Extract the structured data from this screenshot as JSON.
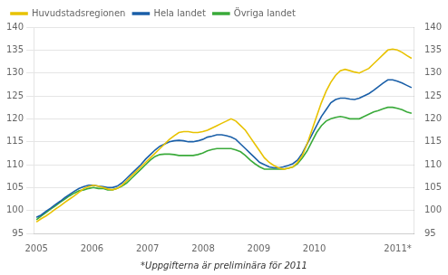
{
  "chart_data": {
    "type": "line",
    "x": [
      2005,
      2005.085443,
      2005.170886,
      2005.256329,
      2005.341772,
      2005.427215,
      2005.512658,
      2005.598101,
      2005.683544,
      2005.768987,
      2005.85443,
      2005.939873,
      2006.025316,
      2006.110759,
      2006.196203,
      2006.281646,
      2006.367089,
      2006.452532,
      2006.537975,
      2006.623418,
      2006.708861,
      2006.794304,
      2006.879747,
      2006.96519,
      2007.050633,
      2007.136076,
      2007.221519,
      2007.306962,
      2007.392405,
      2007.477848,
      2007.563291,
      2007.648734,
      2007.734177,
      2007.81962,
      2007.905063,
      2007.990506,
      2008.075949,
      2008.161392,
      2008.246835,
      2008.332278,
      2008.417722,
      2008.503165,
      2008.588608,
      2008.674051,
      2008.759494,
      2008.844937,
      2008.93038,
      2009.015823,
      2009.101266,
      2009.186709,
      2009.272152,
      2009.357595,
      2009.443038,
      2009.528481,
      2009.613924,
      2009.699367,
      2009.78481,
      2009.870253,
      2009.955696,
      2010.041139,
      2010.126582,
      2010.212025,
      2010.297468,
      2010.382911,
      2010.468354,
      2010.553797,
      2010.639241,
      2010.724684,
      2010.810127,
      2010.89557,
      2010.981013,
      2011.066456,
      2011.151899,
      2011.237342,
      2011.322785,
      2011.408228,
      2011.493671,
      2011.579114,
      2011.664557,
      2011.75
    ],
    "series": [
      {
        "name": "Huvudstadsregionen",
        "color": "#e8c200",
        "values": [
          97.5,
          98.2,
          98.8,
          99.5,
          100.3,
          101.0,
          101.8,
          102.5,
          103.2,
          104.0,
          104.8,
          105.2,
          105.5,
          105.3,
          105.0,
          104.7,
          104.5,
          104.8,
          105.5,
          106.5,
          107.5,
          108.5,
          109.5,
          110.5,
          111.5,
          112.5,
          113.5,
          114.5,
          115.5,
          116.3,
          117.0,
          117.2,
          117.2,
          117.0,
          117.0,
          117.2,
          117.5,
          118.0,
          118.5,
          119.0,
          119.5,
          120.0,
          119.5,
          118.5,
          117.5,
          116.0,
          114.5,
          113.0,
          111.5,
          110.5,
          109.8,
          109.3,
          109.0,
          109.2,
          109.5,
          110.5,
          112.0,
          114.5,
          117.5,
          120.5,
          123.5,
          126.0,
          128.0,
          129.5,
          130.5,
          130.8,
          130.5,
          130.2,
          130.0,
          130.5,
          131.0,
          132.0,
          133.0,
          134.0,
          135.0,
          135.2,
          135.0,
          134.5,
          133.8,
          133.2
        ]
      },
      {
        "name": "Hela landet",
        "color": "#1a5fa8",
        "values": [
          98.5,
          99.0,
          99.8,
          100.5,
          101.3,
          102.0,
          102.8,
          103.5,
          104.2,
          104.8,
          105.2,
          105.5,
          105.5,
          105.3,
          105.2,
          105.0,
          105.0,
          105.3,
          106.0,
          107.0,
          108.0,
          109.0,
          110.0,
          111.2,
          112.2,
          113.2,
          114.0,
          114.5,
          115.0,
          115.2,
          115.3,
          115.2,
          115.0,
          115.0,
          115.2,
          115.5,
          116.0,
          116.2,
          116.5,
          116.5,
          116.3,
          116.0,
          115.5,
          114.5,
          113.5,
          112.5,
          111.5,
          110.5,
          110.0,
          109.5,
          109.3,
          109.3,
          109.5,
          109.8,
          110.2,
          111.0,
          112.5,
          114.5,
          116.5,
          118.5,
          120.5,
          122.0,
          123.5,
          124.2,
          124.5,
          124.5,
          124.3,
          124.2,
          124.5,
          125.0,
          125.5,
          126.2,
          127.0,
          127.8,
          128.5,
          128.5,
          128.2,
          127.8,
          127.3,
          126.8
        ]
      },
      {
        "name": "Övriga landet",
        "color": "#3aaa3a",
        "values": [
          98.0,
          98.8,
          99.5,
          100.3,
          101.0,
          101.8,
          102.5,
          103.2,
          103.8,
          104.3,
          104.5,
          104.8,
          105.0,
          104.8,
          104.8,
          104.5,
          104.5,
          104.8,
          105.3,
          106.0,
          107.0,
          108.0,
          109.0,
          110.0,
          111.0,
          111.8,
          112.2,
          112.3,
          112.3,
          112.2,
          112.0,
          112.0,
          112.0,
          112.0,
          112.2,
          112.5,
          113.0,
          113.3,
          113.5,
          113.5,
          113.5,
          113.5,
          113.2,
          112.8,
          112.0,
          111.0,
          110.2,
          109.5,
          109.0,
          109.0,
          109.0,
          109.0,
          109.0,
          109.2,
          109.5,
          110.2,
          111.5,
          113.0,
          115.0,
          117.0,
          118.5,
          119.5,
          120.0,
          120.3,
          120.5,
          120.3,
          120.0,
          120.0,
          120.0,
          120.5,
          121.0,
          121.5,
          121.8,
          122.2,
          122.5,
          122.5,
          122.3,
          122.0,
          121.5,
          121.2
        ]
      }
    ],
    "xlim": [
      2004.95,
      2011.8
    ],
    "xticks": [
      2005,
      2006,
      2007,
      2008,
      2009,
      2010,
      {
        "value": 2011.5,
        "label": "2011*"
      }
    ],
    "ylim": [
      95,
      140
    ],
    "yticks": [
      95,
      100,
      105,
      110,
      115,
      120,
      125,
      130,
      135,
      140
    ],
    "y2lim": [
      95,
      140
    ],
    "y2ticks": [
      95,
      100,
      105,
      110,
      115,
      120,
      125,
      130,
      135,
      140
    ],
    "grid": true,
    "legend": "upper left",
    "footnote": "*Uppgifterna är preliminära för 2011"
  }
}
